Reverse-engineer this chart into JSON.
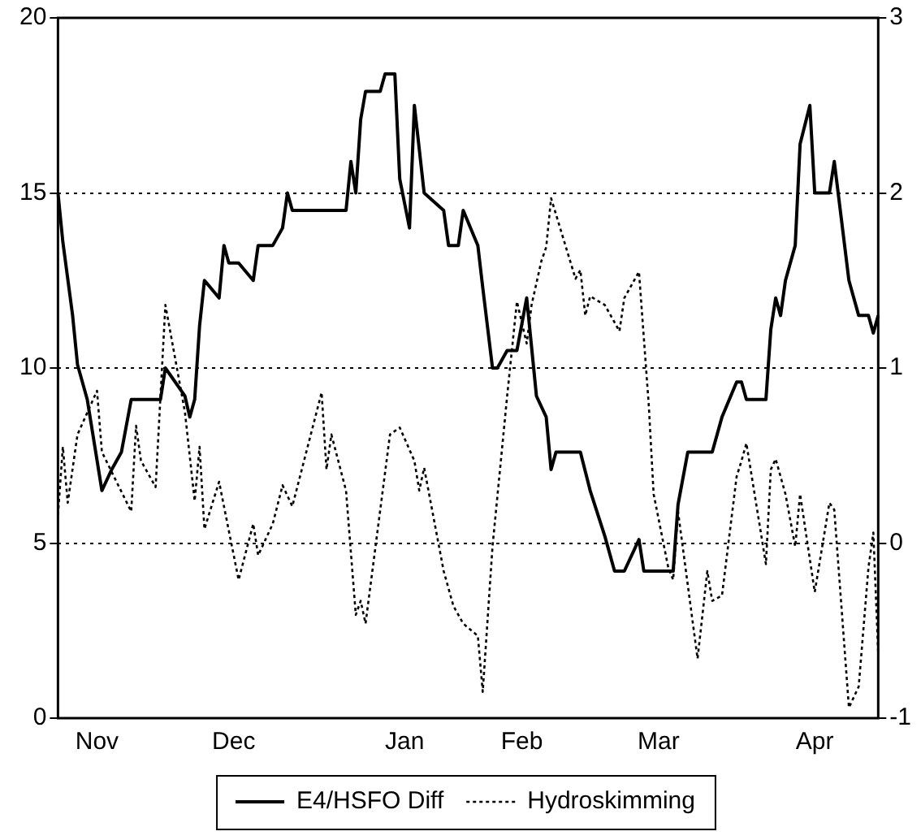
{
  "chart_data": {
    "type": "line",
    "legend": "bottom",
    "grid": "y",
    "marker": "none",
    "categories": [
      null,
      null,
      null,
      null,
      null,
      null,
      null,
      null,
      "Nov",
      null,
      null,
      null,
      null,
      null,
      null,
      null,
      null,
      null,
      null,
      null,
      null,
      null,
      null,
      null,
      null,
      null,
      null,
      null,
      null,
      null,
      null,
      null,
      null,
      null,
      null,
      null,
      "Dec",
      null,
      null,
      null,
      null,
      null,
      null,
      null,
      null,
      null,
      null,
      null,
      null,
      null,
      null,
      null,
      null,
      null,
      null,
      null,
      null,
      null,
      null,
      null,
      null,
      null,
      null,
      null,
      null,
      null,
      null,
      null,
      null,
      null,
      null,
      "Jan",
      null,
      null,
      null,
      null,
      null,
      null,
      null,
      null,
      null,
      null,
      null,
      null,
      null,
      null,
      null,
      null,
      null,
      null,
      null,
      null,
      null,
      null,
      null,
      "Feb",
      null,
      null,
      null,
      null,
      null,
      null,
      null,
      null,
      null,
      null,
      null,
      null,
      null,
      null,
      null,
      null,
      null,
      null,
      null,
      null,
      null,
      null,
      null,
      null,
      null,
      null,
      null,
      "Mar",
      null,
      null,
      null,
      null,
      null,
      null,
      null,
      null,
      null,
      null,
      null,
      null,
      null,
      null,
      null,
      null,
      null,
      null,
      null,
      null,
      null,
      null,
      null,
      null,
      null,
      null,
      null,
      null,
      null,
      null,
      null,
      "Apr",
      null,
      null,
      null,
      null,
      null,
      null,
      null,
      null,
      null,
      null,
      null,
      null,
      null
    ],
    "ylim": [
      0,
      20
    ],
    "yticks": [
      0,
      5,
      10,
      15,
      20
    ],
    "y2lim": [
      -1,
      3
    ],
    "y2ticks": [
      -1,
      0,
      1,
      2,
      3
    ],
    "series": [
      {
        "name": "E4/HSFO Diff",
        "color": "#000000",
        "line_style": "solid",
        "values": [
          15,
          13.6,
          null,
          11.5,
          10.1,
          null,
          9.1,
          null,
          null,
          6.5,
          null,
          7.1,
          null,
          7.6,
          null,
          9.1,
          null,
          null,
          null,
          null,
          null,
          9.1,
          10,
          null,
          null,
          null,
          9.2,
          8.6,
          9.1,
          11.2,
          12.5,
          null,
          null,
          12,
          13.5,
          13,
          null,
          13,
          null,
          null,
          12.5,
          13.5,
          null,
          null,
          13.5,
          null,
          14,
          15,
          14.5,
          null,
          null,
          null,
          null,
          null,
          null,
          null,
          null,
          null,
          null,
          14.5,
          15.9,
          15,
          17.1,
          17.9,
          null,
          null,
          17.9,
          18.4,
          null,
          18.4,
          15.4,
          null,
          14,
          17.5,
          null,
          15,
          null,
          null,
          null,
          14.5,
          13.5,
          null,
          13.5,
          14.5,
          null,
          null,
          13.5,
          12.3,
          null,
          10,
          10,
          null,
          10.5,
          null,
          10.5,
          null,
          12,
          null,
          9.2,
          null,
          8.6,
          7.1,
          7.6,
          null,
          null,
          null,
          null,
          7.6,
          null,
          6.5,
          null,
          null,
          5.2,
          null,
          4.2,
          null,
          4.2,
          null,
          null,
          5.1,
          4.2,
          null,
          null,
          null,
          null,
          null,
          4.2,
          6.1,
          null,
          7.6,
          null,
          null,
          null,
          null,
          7.6,
          null,
          8.6,
          null,
          null,
          9.6,
          9.6,
          9.1,
          null,
          null,
          null,
          9.1,
          11.1,
          12,
          11.5,
          12.5,
          null,
          13.5,
          16.4,
          null,
          17.5,
          15,
          null,
          null,
          15,
          15.9,
          null,
          null,
          12.5,
          null,
          11.5,
          null,
          11.5,
          11,
          11.5
        ]
      },
      {
        "name": "Hydroskimming",
        "color": "#000000",
        "line_style": "dotted",
        "axis": "y2",
        "values": [
          0.16,
          0.55,
          0.23,
          null,
          0.62,
          null,
          null,
          null,
          0.87,
          0.52,
          null,
          null,
          null,
          null,
          null,
          0.18,
          0.67,
          0.47,
          null,
          null,
          0.32,
          null,
          1.36,
          null,
          null,
          null,
          0.75,
          null,
          0.24,
          0.55,
          0.08,
          null,
          null,
          0.35,
          null,
          null,
          null,
          -0.21,
          null,
          null,
          0.11,
          -0.07,
          null,
          null,
          0.11,
          null,
          0.33,
          null,
          0.21,
          null,
          null,
          null,
          null,
          null,
          0.86,
          0.42,
          0.62,
          null,
          null,
          0.3,
          null,
          -0.41,
          -0.33,
          -0.46,
          null,
          null,
          null,
          null,
          0.62,
          null,
          0.66,
          null,
          null,
          0.47,
          0.3,
          0.43,
          null,
          null,
          null,
          -0.16,
          null,
          -0.36,
          null,
          -0.46,
          null,
          null,
          -0.53,
          -0.85,
          null,
          -0.02,
          null,
          null,
          0.84,
          null,
          1.38,
          null,
          1.14,
          1.36,
          null,
          1.61,
          1.69,
          1.97,
          null,
          null,
          null,
          null,
          1.51,
          1.56,
          1.3,
          1.41,
          null,
          null,
          1.36,
          null,
          null,
          1.21,
          1.4,
          null,
          null,
          1.55,
          null,
          0.79,
          0.28,
          null,
          null,
          -0.14,
          -0.21,
          0.18,
          null,
          null,
          null,
          -0.66,
          null,
          -0.16,
          -0.33,
          null,
          -0.3,
          null,
          null,
          0.38,
          0.47,
          0.57,
          null,
          null,
          null,
          -0.12,
          0.42,
          0.48,
          null,
          0.28,
          null,
          -0.02,
          0.28,
          null,
          null,
          -0.28,
          null,
          null,
          0.23,
          0.19,
          null,
          null,
          -0.94,
          null,
          -0.82,
          null,
          -0.14,
          0.06,
          -0.63
        ]
      }
    ]
  }
}
